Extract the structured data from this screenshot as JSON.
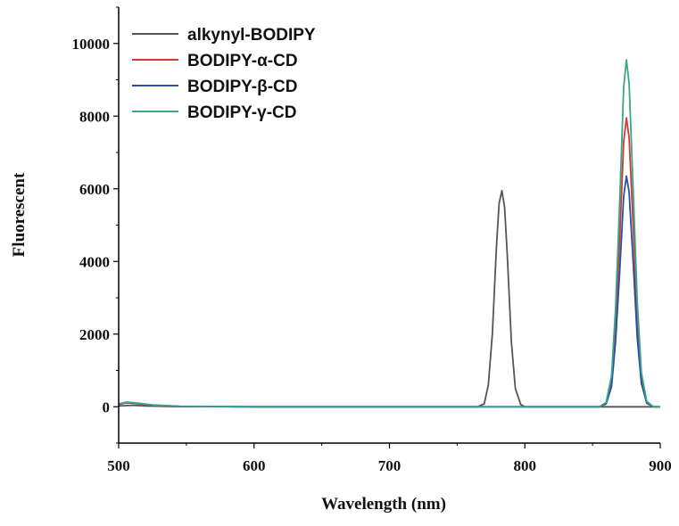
{
  "chart_data": {
    "type": "line",
    "xlabel": "Wavelength (nm)",
    "ylabel": "Fluorescent",
    "xlim": [
      500,
      900
    ],
    "ylim": [
      -1000,
      11000
    ],
    "xticks": [
      500,
      600,
      700,
      800,
      900
    ],
    "yticks": [
      0,
      2000,
      4000,
      6000,
      8000,
      10000
    ],
    "grid": false,
    "legend_position": "top-left",
    "series": [
      {
        "name": "alkynyl-BODIPY",
        "color": "#555555",
        "points": [
          [
            500,
            20
          ],
          [
            510,
            40
          ],
          [
            520,
            20
          ],
          [
            540,
            5
          ],
          [
            600,
            0
          ],
          [
            700,
            0
          ],
          [
            765,
            0
          ],
          [
            770,
            80
          ],
          [
            773,
            600
          ],
          [
            776,
            2000
          ],
          [
            779,
            4400
          ],
          [
            781,
            5600
          ],
          [
            783,
            5950
          ],
          [
            785,
            5500
          ],
          [
            787,
            4200
          ],
          [
            790,
            1800
          ],
          [
            793,
            500
          ],
          [
            797,
            60
          ],
          [
            800,
            0
          ],
          [
            900,
            0
          ]
        ]
      },
      {
        "name": "BODIPY-α-CD",
        "color": "#d03a32",
        "points": [
          [
            500,
            60
          ],
          [
            506,
            110
          ],
          [
            512,
            90
          ],
          [
            525,
            40
          ],
          [
            545,
            10
          ],
          [
            600,
            0
          ],
          [
            700,
            0
          ],
          [
            855,
            0
          ],
          [
            860,
            100
          ],
          [
            864,
            700
          ],
          [
            867,
            2200
          ],
          [
            870,
            4600
          ],
          [
            873,
            7300
          ],
          [
            875,
            7950
          ],
          [
            877,
            7400
          ],
          [
            880,
            5000
          ],
          [
            883,
            2400
          ],
          [
            886,
            800
          ],
          [
            890,
            120
          ],
          [
            895,
            0
          ],
          [
            900,
            0
          ]
        ]
      },
      {
        "name": "BODIPY-β-CD",
        "color": "#2a4fa8",
        "points": [
          [
            500,
            70
          ],
          [
            506,
            120
          ],
          [
            512,
            100
          ],
          [
            525,
            45
          ],
          [
            545,
            12
          ],
          [
            600,
            0
          ],
          [
            700,
            0
          ],
          [
            855,
            0
          ],
          [
            860,
            80
          ],
          [
            864,
            550
          ],
          [
            867,
            1800
          ],
          [
            870,
            3700
          ],
          [
            873,
            5800
          ],
          [
            875,
            6350
          ],
          [
            877,
            5900
          ],
          [
            880,
            4000
          ],
          [
            883,
            1900
          ],
          [
            886,
            650
          ],
          [
            890,
            100
          ],
          [
            895,
            0
          ],
          [
            900,
            0
          ]
        ]
      },
      {
        "name": "BODIPY-γ-CD",
        "color": "#3aa58a",
        "points": [
          [
            500,
            80
          ],
          [
            506,
            130
          ],
          [
            512,
            110
          ],
          [
            525,
            50
          ],
          [
            545,
            15
          ],
          [
            600,
            0
          ],
          [
            700,
            0
          ],
          [
            855,
            0
          ],
          [
            860,
            120
          ],
          [
            864,
            850
          ],
          [
            867,
            2700
          ],
          [
            870,
            5600
          ],
          [
            873,
            8800
          ],
          [
            875,
            9550
          ],
          [
            877,
            8900
          ],
          [
            880,
            6000
          ],
          [
            883,
            2900
          ],
          [
            886,
            950
          ],
          [
            890,
            150
          ],
          [
            895,
            0
          ],
          [
            900,
            0
          ]
        ]
      }
    ]
  }
}
